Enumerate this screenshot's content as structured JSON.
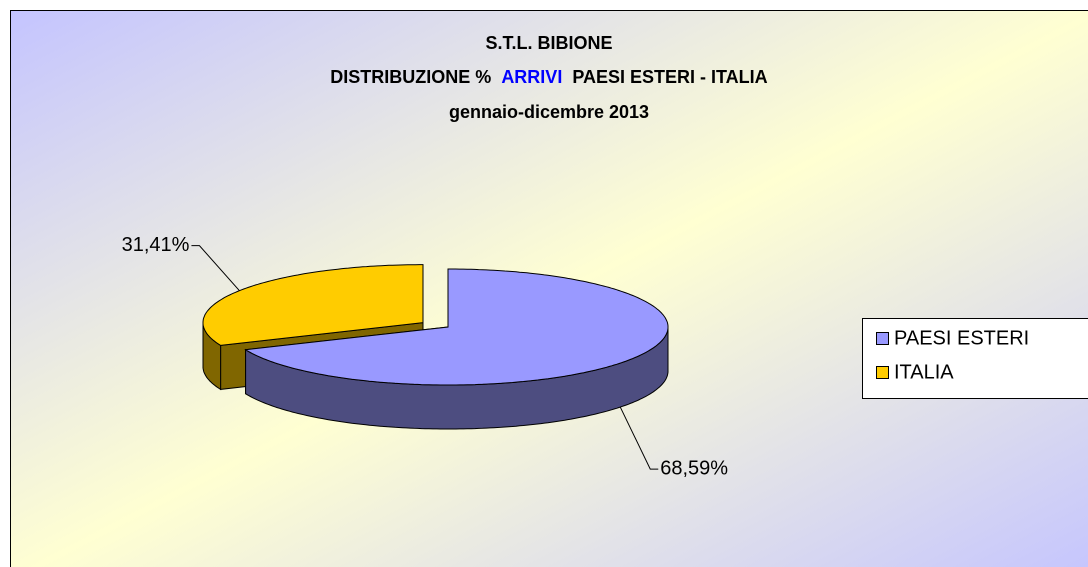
{
  "chart_data": {
    "type": "pie",
    "title": "S.T.L. BIBIONE",
    "subtitle_parts": [
      "DISTRIBUZIONE %",
      "ARRIVI",
      "PAESI ESTERI - ITALIA"
    ],
    "subtitle_highlight": 1,
    "subtitle_highlight_color": "#0000ff",
    "period": "gennaio-dicembre 2013",
    "categories": [
      "PAESI ESTERI",
      "ITALIA"
    ],
    "values": [
      68.59,
      31.41
    ],
    "value_labels": [
      "68,59%",
      "31,41%"
    ],
    "colors": [
      "#9999ff",
      "#ffcc00"
    ],
    "exploded": [
      false,
      true
    ],
    "legend": "right"
  }
}
